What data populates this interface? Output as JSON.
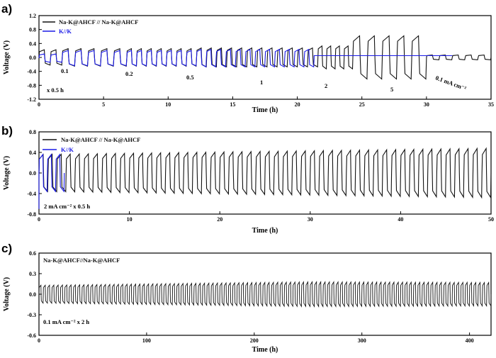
{
  "colors": {
    "black_series": "#111111",
    "blue_series": "#1a1ae6"
  },
  "chart_data": [
    {
      "panel": "a)",
      "type": "line",
      "xlabel": "Time (h)",
      "ylabel": "Voltage (V)",
      "xlim": [
        0,
        35
      ],
      "ylim": [
        -1.2,
        1.2
      ],
      "xticks": [
        0,
        5,
        10,
        15,
        20,
        25,
        30,
        35
      ],
      "yticks": [
        -1.2,
        -0.8,
        -0.4,
        0.0,
        0.4,
        0.8,
        1.2
      ],
      "ytick_labels": [
        "-1.2",
        "-0.8",
        "-0.4",
        "0.0",
        "0.4",
        "0.8",
        "1.2"
      ],
      "legend": {
        "position": "top-left"
      },
      "series": [
        {
          "name": "Na-K@AHCF // Na-K@AHCF",
          "color": "#111111",
          "segments": [
            {
              "rate_mA_cm2": 0.1,
              "t_start": 0,
              "t_end": 1.8,
              "cycles": 2,
              "amplitude": 0.22
            },
            {
              "rate_mA_cm2": 0.2,
              "t_start": 1.8,
              "t_end": 6.8,
              "cycles": 5,
              "amplitude": 0.25
            },
            {
              "rate_mA_cm2": 0.5,
              "t_start": 6.8,
              "t_end": 12.2,
              "cycles": 7,
              "amplitude": 0.25
            },
            {
              "rate_mA_cm2": 1,
              "t_start": 12.2,
              "t_end": 21.6,
              "cycles": 12,
              "amplitude": 0.27
            },
            {
              "rate_mA_cm2": 2,
              "t_start": 21.6,
              "t_end": 24.3,
              "cycles": 4,
              "amplitude": 0.33
            },
            {
              "rate_mA_cm2": 5,
              "t_start": 24.3,
              "t_end": 30.0,
              "cycles": 5,
              "amplitude": 0.62
            },
            {
              "rate_mA_cm2": 0.1,
              "t_start": 30.0,
              "t_end": 35,
              "cycles": 5,
              "amplitude": 0.07
            }
          ]
        },
        {
          "name": "K//K",
          "color": "#1a1ae6",
          "segments": [
            {
              "rate_mA_cm2": 0.1,
              "t_start": 0,
              "t_end": 1.8,
              "cycles": 2,
              "amplitude": 0.12
            },
            {
              "rate_mA_cm2": 0.2,
              "t_start": 1.8,
              "t_end": 6.8,
              "cycles": 5,
              "amplitude": 0.22
            },
            {
              "rate_mA_cm2": 0.5,
              "t_start": 6.8,
              "t_end": 12.2,
              "cycles": 7,
              "amplitude": 0.22
            },
            {
              "rate_mA_cm2": 1,
              "t_start": 12.2,
              "t_end": 21.3,
              "cycles": 12,
              "amplitude": 0.25
            },
            {
              "rate_mA_cm2": "short-circuit",
              "t_start": 21.3,
              "t_end": 32,
              "cycles": 0,
              "amplitude": 0.05
            }
          ]
        }
      ],
      "annotations": [
        {
          "text": "0.1",
          "x": 1.2,
          "y": -0.32
        },
        {
          "text": "0.2",
          "x": 6.8,
          "y": -0.45
        },
        {
          "text": "0.5",
          "x": 11.8,
          "y": -0.6
        },
        {
          "text": "1",
          "x": 17.7,
          "y": -0.8
        },
        {
          "text": "2",
          "x": 23.0,
          "y": -0.9
        },
        {
          "text": "5",
          "x": 27.9,
          "y": -1.0
        },
        {
          "text": "x 0.5 h",
          "x": 0.6,
          "y": -0.9
        },
        {
          "text": "0.1 mA cm⁻²",
          "x": 31.0,
          "y": -0.55
        }
      ]
    },
    {
      "panel": "b)",
      "type": "line",
      "xlabel": "Time (h)",
      "ylabel": "Voltage (V)",
      "xlim": [
        0,
        50
      ],
      "ylim": [
        -0.8,
        0.8
      ],
      "xticks": [
        0,
        10,
        20,
        30,
        40,
        50
      ],
      "yticks": [
        -0.8,
        -0.4,
        0.0,
        0.4,
        0.8
      ],
      "ytick_labels": [
        "-0.8",
        "-0.4",
        "0.0",
        "0.4",
        "0.8"
      ],
      "legend": {
        "position": "top-left"
      },
      "annotation": "2 mA cm⁻² x 0.5 h",
      "series": [
        {
          "name": "Na-K@AHCF // Na-K@AHCF",
          "color": "#111111",
          "t_start": 0,
          "t_end": 50,
          "period_h": 1.0,
          "amplitude_start": 0.36,
          "amplitude_end": 0.48
        },
        {
          "name": "K//K",
          "color": "#1a1ae6",
          "t_start": 0,
          "t_end": 2.8,
          "period_h": 1.0,
          "amplitude_start": 0.36,
          "amplitude_end": 0.36
        }
      ]
    },
    {
      "panel": "c)",
      "type": "line",
      "xlabel": "Time (h)",
      "ylabel": "Voltage (V)",
      "xlim": [
        0,
        420
      ],
      "ylim": [
        -0.6,
        0.6
      ],
      "xticks": [
        0,
        100,
        200,
        300,
        400
      ],
      "yticks": [
        -0.6,
        -0.3,
        0.0,
        0.3,
        0.6
      ],
      "ytick_labels": [
        "-0.6",
        "-0.3",
        "0.0",
        "0.3",
        "0.6"
      ],
      "legend": {
        "position": "top-left"
      },
      "annotation": "0.1 mA cm⁻² x 2 h",
      "series": [
        {
          "name": "Na-K@AHCF//Na-K@AHCF",
          "color": "#111111",
          "t_start": 0,
          "t_end": 420,
          "period_h": 4.0,
          "amplitude_start": 0.13,
          "amplitude_mid": 0.18,
          "amplitude_end": 0.17
        }
      ]
    }
  ]
}
